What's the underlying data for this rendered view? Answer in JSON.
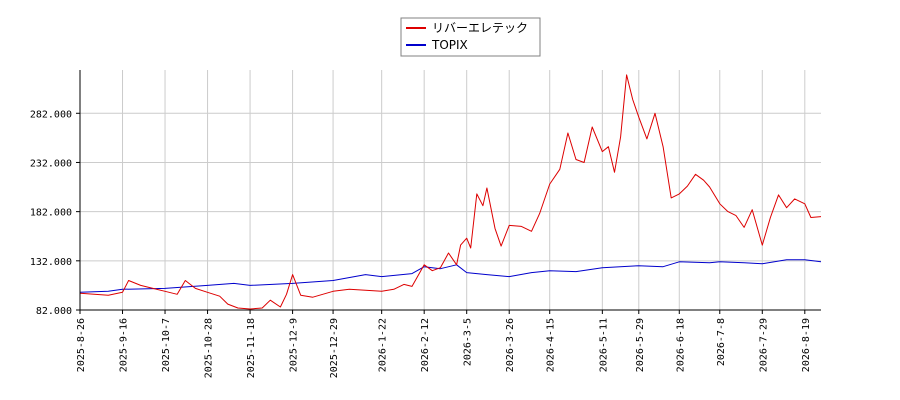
{
  "chart_data": {
    "type": "line",
    "legend": {
      "placement": "top-center"
    },
    "grid": true,
    "ylim": [
      82,
      326
    ],
    "y_ticks": [
      "82.000",
      "132.000",
      "182.000",
      "232.000",
      "282.000"
    ],
    "y_tick_values": [
      82,
      132,
      182,
      232,
      282
    ],
    "x_ticks": [
      "2025-8-26",
      "2025-9-16",
      "2025-10-7",
      "2025-10-28",
      "2025-11-18",
      "2025-12-9",
      "2025-12-29",
      "2026-1-22",
      "2026-2-12",
      "2026-3-5",
      "2026-3-26",
      "2026-4-15",
      "2026-5-11",
      "2026-5-29",
      "2026-6-18",
      "2026-7-8",
      "2026-7-29",
      "2026-8-19"
    ],
    "x_range": [
      "2025-08-26",
      "2026-08-27"
    ],
    "series": [
      {
        "name": "リバーエレテック",
        "color": "#dd0000",
        "points": [
          [
            "2025-08-26",
            99
          ],
          [
            "2025-09-02",
            98
          ],
          [
            "2025-09-09",
            97
          ],
          [
            "2025-09-16",
            100
          ],
          [
            "2025-09-19",
            112
          ],
          [
            "2025-09-25",
            107
          ],
          [
            "2025-10-01",
            104
          ],
          [
            "2025-10-07",
            101
          ],
          [
            "2025-10-13",
            98
          ],
          [
            "2025-10-17",
            112
          ],
          [
            "2025-10-22",
            104
          ],
          [
            "2025-10-28",
            100
          ],
          [
            "2025-11-03",
            96
          ],
          [
            "2025-11-07",
            88
          ],
          [
            "2025-11-12",
            84
          ],
          [
            "2025-11-18",
            83
          ],
          [
            "2025-11-24",
            84
          ],
          [
            "2025-11-28",
            92
          ],
          [
            "2025-12-03",
            85
          ],
          [
            "2025-12-06",
            98
          ],
          [
            "2025-12-09",
            118
          ],
          [
            "2025-12-13",
            97
          ],
          [
            "2025-12-19",
            95
          ],
          [
            "2025-12-29",
            101
          ],
          [
            "2026-01-06",
            103
          ],
          [
            "2026-01-14",
            102
          ],
          [
            "2026-01-22",
            101
          ],
          [
            "2026-01-28",
            103
          ],
          [
            "2026-02-02",
            108
          ],
          [
            "2026-02-06",
            106
          ],
          [
            "2026-02-12",
            128
          ],
          [
            "2026-02-16",
            122
          ],
          [
            "2026-02-20",
            125
          ],
          [
            "2026-02-24",
            140
          ],
          [
            "2026-02-28",
            128
          ],
          [
            "2026-03-02",
            148
          ],
          [
            "2026-03-05",
            155
          ],
          [
            "2026-03-07",
            145
          ],
          [
            "2026-03-10",
            200
          ],
          [
            "2026-03-13",
            188
          ],
          [
            "2026-03-15",
            206
          ],
          [
            "2026-03-19",
            165
          ],
          [
            "2026-03-22",
            147
          ],
          [
            "2026-03-26",
            168
          ],
          [
            "2026-04-01",
            167
          ],
          [
            "2026-04-06",
            162
          ],
          [
            "2026-04-10",
            180
          ],
          [
            "2026-04-15",
            210
          ],
          [
            "2026-04-20",
            225
          ],
          [
            "2026-04-24",
            262
          ],
          [
            "2026-04-28",
            235
          ],
          [
            "2026-05-02",
            232
          ],
          [
            "2026-05-06",
            268
          ],
          [
            "2026-05-11",
            243
          ],
          [
            "2026-05-14",
            248
          ],
          [
            "2026-05-17",
            222
          ],
          [
            "2026-05-20",
            258
          ],
          [
            "2026-05-23",
            321
          ],
          [
            "2026-05-26",
            296
          ],
          [
            "2026-05-29",
            278
          ],
          [
            "2026-06-02",
            256
          ],
          [
            "2026-06-06",
            282
          ],
          [
            "2026-06-10",
            248
          ],
          [
            "2026-06-14",
            196
          ],
          [
            "2026-06-18",
            200
          ],
          [
            "2026-06-22",
            208
          ],
          [
            "2026-06-26",
            220
          ],
          [
            "2026-06-30",
            214
          ],
          [
            "2026-07-03",
            207
          ],
          [
            "2026-07-08",
            190
          ],
          [
            "2026-07-12",
            182
          ],
          [
            "2026-07-16",
            178
          ],
          [
            "2026-07-20",
            166
          ],
          [
            "2026-07-24",
            184
          ],
          [
            "2026-07-29",
            148
          ],
          [
            "2026-08-02",
            176
          ],
          [
            "2026-08-06",
            199
          ],
          [
            "2026-08-10",
            186
          ],
          [
            "2026-08-14",
            195
          ],
          [
            "2026-08-19",
            190
          ],
          [
            "2026-08-22",
            176
          ],
          [
            "2026-08-27",
            177
          ]
        ]
      },
      {
        "name": "TOPIX",
        "color": "#0000cc",
        "points": [
          [
            "2025-08-26",
            100
          ],
          [
            "2025-09-09",
            101
          ],
          [
            "2025-09-16",
            103
          ],
          [
            "2025-10-07",
            104
          ],
          [
            "2025-10-28",
            107
          ],
          [
            "2025-11-10",
            109
          ],
          [
            "2025-11-18",
            107
          ],
          [
            "2025-12-09",
            109
          ],
          [
            "2025-12-29",
            112
          ],
          [
            "2026-01-14",
            118
          ],
          [
            "2026-01-22",
            116
          ],
          [
            "2026-02-06",
            119
          ],
          [
            "2026-02-12",
            126
          ],
          [
            "2026-02-20",
            124
          ],
          [
            "2026-02-28",
            128
          ],
          [
            "2026-03-05",
            120
          ],
          [
            "2026-03-15",
            118
          ],
          [
            "2026-03-26",
            116
          ],
          [
            "2026-04-06",
            120
          ],
          [
            "2026-04-15",
            122
          ],
          [
            "2026-04-28",
            121
          ],
          [
            "2026-05-11",
            125
          ],
          [
            "2026-05-29",
            127
          ],
          [
            "2026-06-10",
            126
          ],
          [
            "2026-06-18",
            131
          ],
          [
            "2026-07-03",
            130
          ],
          [
            "2026-07-08",
            131
          ],
          [
            "2026-07-20",
            130
          ],
          [
            "2026-07-29",
            129
          ],
          [
            "2026-08-10",
            133
          ],
          [
            "2026-08-19",
            133
          ],
          [
            "2026-08-27",
            131
          ]
        ]
      }
    ]
  }
}
